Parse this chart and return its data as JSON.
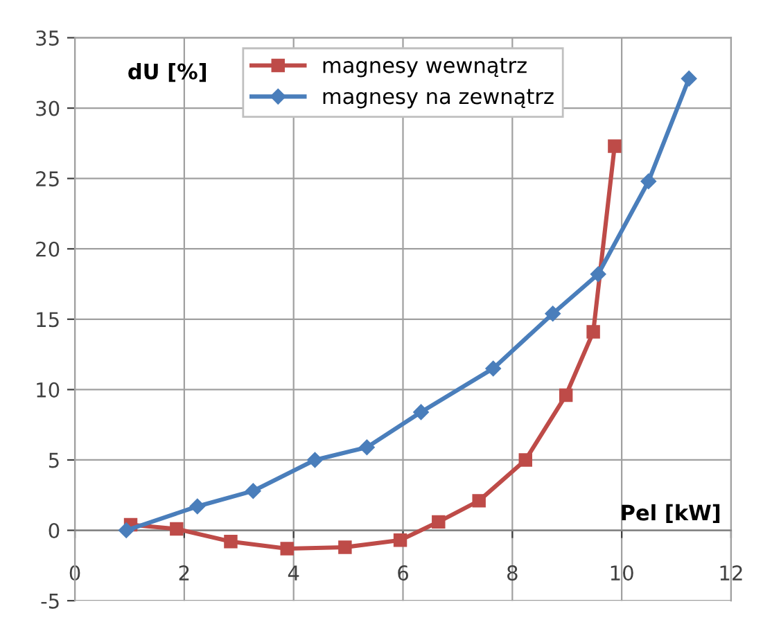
{
  "chart_data": {
    "type": "line",
    "xlabel": "Pel [kW]",
    "ylabel": "dU [%]",
    "xlim": [
      0,
      12
    ],
    "xticks": [
      0,
      2,
      4,
      6,
      8,
      10,
      12
    ],
    "ylim": [
      -5,
      35
    ],
    "yticks": [
      -5,
      0,
      5,
      10,
      15,
      20,
      25,
      30,
      35
    ],
    "grid": true,
    "legend": "top",
    "line_style": "solid",
    "series": [
      {
        "name": "magnesy wewnątrz",
        "color": "#be4b48",
        "marker": "square",
        "x": [
          1.02,
          1.86,
          2.85,
          3.88,
          4.94,
          5.95,
          6.65,
          7.39,
          8.24,
          8.98,
          9.48,
          9.87
        ],
        "values": [
          0.4,
          0.1,
          -0.8,
          -1.3,
          -1.2,
          -0.7,
          0.6,
          2.1,
          5.0,
          9.6,
          14.1,
          27.3
        ]
      },
      {
        "name": "magnesy na zewnątrz",
        "color": "#4a7ebb",
        "marker": "diamond",
        "x": [
          0.94,
          2.24,
          3.26,
          4.39,
          5.34,
          6.33,
          7.65,
          8.74,
          9.57,
          10.49,
          11.23
        ],
        "values": [
          0.0,
          1.7,
          2.8,
          5.0,
          5.9,
          8.4,
          11.5,
          15.4,
          18.2,
          24.8,
          32.1
        ]
      }
    ]
  }
}
